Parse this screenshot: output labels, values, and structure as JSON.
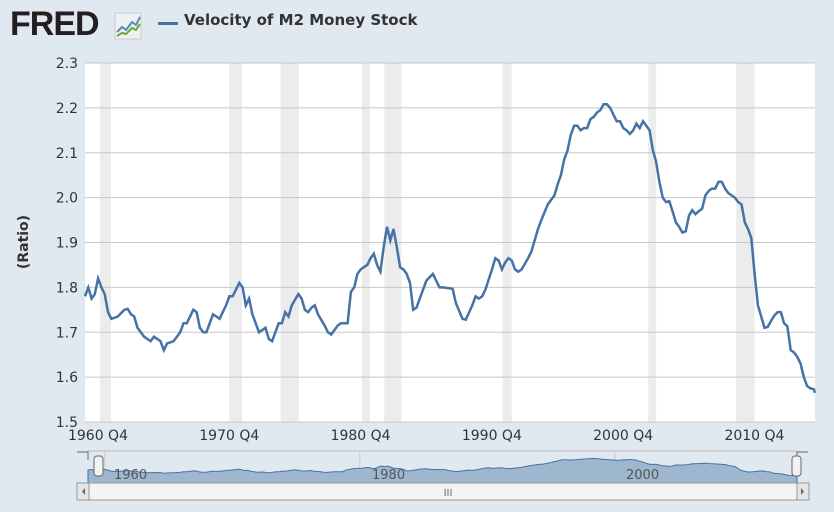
{
  "header": {
    "logo": "FRED",
    "legend_label": "Velocity of M2 Money Stock"
  },
  "navigator": {
    "labels": [
      "1960",
      "1980",
      "2000"
    ],
    "scroll_grip": "III"
  },
  "chart_data": {
    "type": "line",
    "title": "Velocity of M2 Money Stock",
    "xlabel": "",
    "ylabel": "(Ratio)",
    "ylim": [
      1.5,
      2.3
    ],
    "xlim": [
      1959.0,
      2014.6
    ],
    "yticks": [
      "1.5",
      "1.6",
      "1.7",
      "1.8",
      "1.9",
      "2.0",
      "2.1",
      "2.2",
      "2.3"
    ],
    "xticks": [
      {
        "label": "1960 Q4",
        "year": 1960.75
      },
      {
        "label": "1970 Q4",
        "year": 1970.75
      },
      {
        "label": "1980 Q4",
        "year": 1980.75
      },
      {
        "label": "1990 Q4",
        "year": 1990.75
      },
      {
        "label": "2000 Q4",
        "year": 2000.75
      },
      {
        "label": "2010 Q4",
        "year": 2010.75
      }
    ],
    "grid": true,
    "legend": "top-left",
    "series_color": "#4572a7",
    "recessions": [
      [
        1960.14,
        1960.98
      ],
      [
        1969.97,
        1970.96
      ],
      [
        1973.9,
        1975.3
      ],
      [
        1980.1,
        1980.7
      ],
      [
        1981.8,
        1983.1
      ],
      [
        1990.8,
        1991.5
      ],
      [
        2001.9,
        2002.5
      ],
      [
        2008.6,
        2010.0
      ]
    ],
    "series": [
      {
        "name": "Velocity of M2 Money Stock",
        "x": [
          1959.0,
          1959.25,
          1959.5,
          1959.75,
          1960.0,
          1960.25,
          1960.5,
          1960.75,
          1961.0,
          1961.5,
          1962.0,
          1962.25,
          1962.5,
          1962.75,
          1963.0,
          1963.5,
          1963.75,
          1964.0,
          1964.25,
          1964.75,
          1965.0,
          1965.25,
          1965.75,
          1966.25,
          1966.5,
          1966.75,
          1967.25,
          1967.5,
          1967.75,
          1968.0,
          1968.25,
          1968.75,
          1969.0,
          1969.25,
          1969.75,
          1970.0,
          1970.25,
          1970.5,
          1970.75,
          1971.0,
          1971.25,
          1971.5,
          1971.75,
          1972.25,
          1972.75,
          1973.0,
          1973.25,
          1973.75,
          1974.0,
          1974.25,
          1974.5,
          1974.75,
          1975.25,
          1975.5,
          1975.75,
          1976.0,
          1976.25,
          1976.5,
          1976.75,
          1977.25,
          1977.5,
          1977.75,
          1978.25,
          1978.5,
          1979.0,
          1979.25,
          1979.5,
          1979.75,
          1980.0,
          1980.5,
          1980.75,
          1981.0,
          1981.25,
          1981.5,
          1981.75,
          1982.0,
          1982.25,
          1982.5,
          1982.75,
          1983.0,
          1983.25,
          1983.5,
          1983.75,
          1984.0,
          1984.25,
          1984.75,
          1985.0,
          1985.5,
          1986.0,
          1986.25,
          1986.75,
          1987.0,
          1987.25,
          1987.75,
          1988.0,
          1988.5,
          1988.75,
          1989.0,
          1989.25,
          1989.5,
          1990.0,
          1990.25,
          1990.5,
          1990.75,
          1991.0,
          1991.25,
          1991.5,
          1991.75,
          1992.0,
          1992.25,
          1992.75,
          1993.0,
          1993.5,
          1993.75,
          1994.25,
          1994.75,
          1995.0,
          1995.25,
          1995.5,
          1995.75,
          1996.0,
          1996.25,
          1996.5,
          1996.75,
          1997.0,
          1997.25,
          1997.5,
          1997.75,
          1998.0,
          1998.25,
          1998.5,
          1998.75,
          1999.0,
          1999.5,
          1999.75,
          2000.0,
          2000.25,
          2000.5,
          2000.75,
          2001.0,
          2001.25,
          2001.5,
          2001.75,
          2002.0,
          2002.25,
          2002.5,
          2002.75,
          2003.0,
          2003.25,
          2003.5,
          2003.75,
          2004.0,
          2004.25,
          2004.5,
          2004.75,
          2005.0,
          2005.25,
          2005.5,
          2005.75,
          2006.0,
          2006.25,
          2006.5,
          2006.75,
          2007.0,
          2007.25,
          2007.5,
          2007.75,
          2008.0,
          2008.5,
          2008.75,
          2009.0,
          2009.25,
          2009.5,
          2009.75,
          2010.0,
          2010.25,
          2010.5,
          2010.75,
          2011.0,
          2011.25,
          2011.5,
          2011.75,
          2012.0,
          2012.25,
          2012.5,
          2012.75,
          2013.0,
          2013.25,
          2013.5,
          2013.75,
          2014.0,
          2014.25,
          2014.5,
          2014.6
        ],
        "values": [
          1.78,
          1.8,
          1.775,
          1.785,
          1.82,
          1.8,
          1.785,
          1.745,
          1.73,
          1.735,
          1.75,
          1.752,
          1.74,
          1.735,
          1.71,
          1.69,
          1.685,
          1.68,
          1.69,
          1.68,
          1.66,
          1.675,
          1.68,
          1.7,
          1.72,
          1.72,
          1.75,
          1.745,
          1.71,
          1.7,
          1.7,
          1.74,
          1.735,
          1.73,
          1.76,
          1.78,
          1.78,
          1.795,
          1.81,
          1.8,
          1.76,
          1.775,
          1.74,
          1.7,
          1.71,
          1.685,
          1.68,
          1.72,
          1.72,
          1.745,
          1.735,
          1.76,
          1.785,
          1.775,
          1.75,
          1.745,
          1.755,
          1.76,
          1.74,
          1.715,
          1.7,
          1.695,
          1.715,
          1.72,
          1.72,
          1.79,
          1.8,
          1.83,
          1.84,
          1.85,
          1.865,
          1.875,
          1.85,
          1.835,
          1.89,
          1.935,
          1.905,
          1.93,
          1.89,
          1.845,
          1.84,
          1.83,
          1.81,
          1.75,
          1.755,
          1.795,
          1.815,
          1.83,
          1.8,
          1.8,
          1.798,
          1.797,
          1.765,
          1.73,
          1.728,
          1.76,
          1.78,
          1.775,
          1.78,
          1.795,
          1.84,
          1.865,
          1.86,
          1.84,
          1.855,
          1.865,
          1.86,
          1.84,
          1.835,
          1.84,
          1.865,
          1.88,
          1.93,
          1.95,
          1.985,
          2.005,
          2.03,
          2.05,
          2.085,
          2.105,
          2.14,
          2.16,
          2.16,
          2.15,
          2.155,
          2.155,
          2.175,
          2.18,
          2.19,
          2.195,
          2.208,
          2.208,
          2.2,
          2.17,
          2.17,
          2.155,
          2.15,
          2.142,
          2.15,
          2.165,
          2.155,
          2.17,
          2.16,
          2.15,
          2.105,
          2.08,
          2.035,
          2.0,
          1.99,
          1.992,
          1.97,
          1.945,
          1.935,
          1.922,
          1.925,
          1.96,
          1.972,
          1.963,
          1.97,
          1.975,
          2.005,
          2.015,
          2.02,
          2.02,
          2.035,
          2.035,
          2.02,
          2.01,
          2.0,
          1.99,
          1.985,
          1.945,
          1.93,
          1.91,
          1.83,
          1.76,
          1.735,
          1.71,
          1.712,
          1.725,
          1.737,
          1.745,
          1.745,
          1.72,
          1.713,
          1.66,
          1.655,
          1.645,
          1.63,
          1.6,
          1.58,
          1.575,
          1.573,
          1.565
        ]
      }
    ]
  }
}
